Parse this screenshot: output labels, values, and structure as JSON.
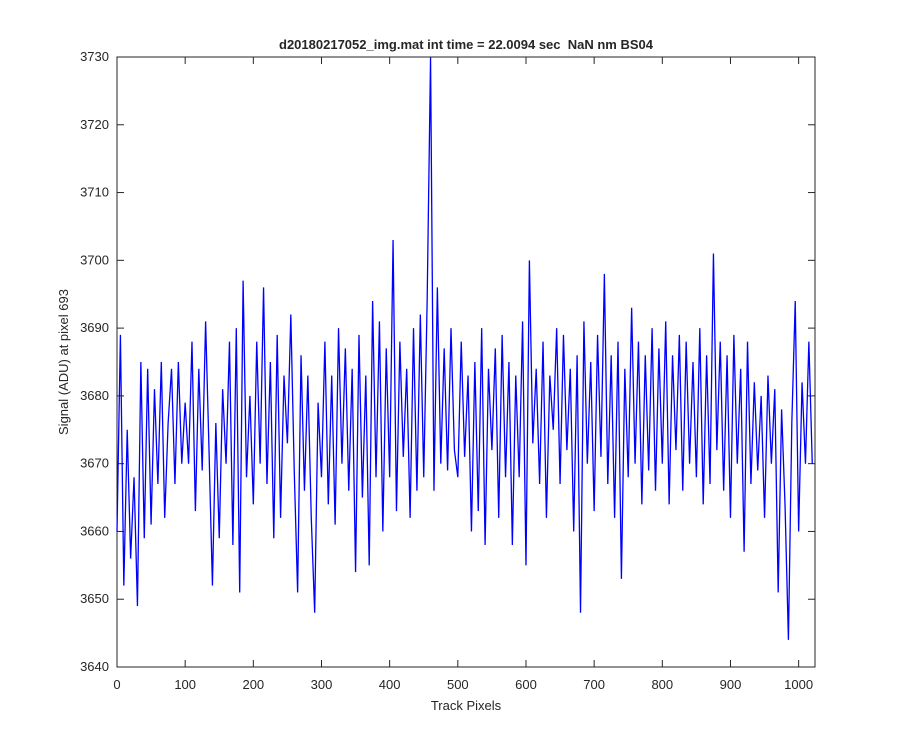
{
  "chart_data": {
    "type": "line",
    "title": "d20180217052_img.mat int time = 22.0094 sec  NaN nm BS04",
    "x_label": "Track Pixels",
    "y_label": "Signal (ADU) at pixel 693",
    "x": [
      0,
      5,
      10,
      15,
      20,
      25,
      30,
      35,
      40,
      45,
      50,
      55,
      60,
      65,
      70,
      75,
      80,
      85,
      90,
      95,
      100,
      105,
      110,
      115,
      120,
      125,
      130,
      135,
      140,
      145,
      150,
      155,
      160,
      165,
      170,
      175,
      180,
      185,
      190,
      195,
      200,
      205,
      210,
      215,
      220,
      225,
      230,
      235,
      240,
      245,
      250,
      255,
      260,
      265,
      270,
      275,
      280,
      285,
      290,
      295,
      300,
      305,
      310,
      315,
      320,
      325,
      330,
      335,
      340,
      345,
      350,
      355,
      360,
      365,
      370,
      375,
      380,
      385,
      390,
      395,
      400,
      405,
      410,
      415,
      420,
      425,
      430,
      435,
      440,
      445,
      450,
      455,
      460,
      465,
      470,
      475,
      480,
      485,
      490,
      495,
      500,
      505,
      510,
      515,
      520,
      525,
      530,
      535,
      540,
      545,
      550,
      555,
      560,
      565,
      570,
      575,
      580,
      585,
      590,
      595,
      600,
      605,
      610,
      615,
      620,
      625,
      630,
      635,
      640,
      645,
      650,
      655,
      660,
      665,
      670,
      675,
      680,
      685,
      690,
      695,
      700,
      705,
      710,
      715,
      720,
      725,
      730,
      735,
      740,
      745,
      750,
      755,
      760,
      765,
      770,
      775,
      780,
      785,
      790,
      795,
      800,
      805,
      810,
      815,
      820,
      825,
      830,
      835,
      840,
      845,
      850,
      855,
      860,
      865,
      870,
      875,
      880,
      885,
      890,
      895,
      900,
      905,
      910,
      915,
      920,
      925,
      930,
      935,
      940,
      945,
      950,
      955,
      960,
      965,
      970,
      975,
      980,
      985,
      990,
      995,
      1000,
      1005,
      1010,
      1015,
      1020
    ],
    "series": [
      {
        "name": "signal",
        "color": "#0000ff",
        "values": [
          3660,
          3689,
          3652,
          3675,
          3656,
          3668,
          3649,
          3685,
          3659,
          3684,
          3661,
          3681,
          3667,
          3685,
          3662,
          3676,
          3684,
          3667,
          3685,
          3670,
          3679,
          3670,
          3688,
          3663,
          3684,
          3669,
          3691,
          3672,
          3652,
          3676,
          3659,
          3681,
          3670,
          3688,
          3658,
          3690,
          3651,
          3697,
          3668,
          3680,
          3664,
          3688,
          3670,
          3696,
          3667,
          3685,
          3659,
          3689,
          3662,
          3683,
          3673,
          3692,
          3669,
          3651,
          3686,
          3666,
          3683,
          3662,
          3648,
          3679,
          3668,
          3688,
          3664,
          3683,
          3661,
          3690,
          3670,
          3687,
          3666,
          3684,
          3654,
          3689,
          3665,
          3683,
          3655,
          3694,
          3668,
          3691,
          3660,
          3687,
          3668,
          3703,
          3663,
          3688,
          3671,
          3684,
          3662,
          3690,
          3666,
          3692,
          3668,
          3694,
          3730,
          3666,
          3696,
          3670,
          3687,
          3669,
          3690,
          3672,
          3668,
          3688,
          3671,
          3683,
          3660,
          3685,
          3663,
          3690,
          3658,
          3684,
          3672,
          3687,
          3662,
          3689,
          3668,
          3685,
          3658,
          3683,
          3668,
          3691,
          3655,
          3700,
          3673,
          3684,
          3667,
          3688,
          3662,
          3683,
          3675,
          3690,
          3667,
          3689,
          3672,
          3684,
          3660,
          3686,
          3648,
          3691,
          3670,
          3685,
          3663,
          3689,
          3671,
          3698,
          3667,
          3686,
          3662,
          3688,
          3653,
          3684,
          3668,
          3693,
          3670,
          3688,
          3664,
          3686,
          3669,
          3690,
          3666,
          3687,
          3670,
          3691,
          3664,
          3686,
          3672,
          3689,
          3666,
          3688,
          3670,
          3685,
          3668,
          3690,
          3664,
          3686,
          3667,
          3701,
          3672,
          3688,
          3666,
          3686,
          3662,
          3689,
          3670,
          3684,
          3657,
          3688,
          3667,
          3682,
          3669,
          3680,
          3662,
          3683,
          3670,
          3681,
          3651,
          3678,
          3664,
          3644,
          3676,
          3694,
          3660,
          3682,
          3670,
          3688,
          3670
        ]
      }
    ],
    "xlim": [
      0,
      1024
    ],
    "ylim": [
      3640,
      3730
    ],
    "xticks": [
      0,
      100,
      200,
      300,
      400,
      500,
      600,
      700,
      800,
      900,
      1000
    ],
    "yticks": [
      3640,
      3650,
      3660,
      3670,
      3680,
      3690,
      3700,
      3710,
      3720,
      3730
    ],
    "grid": false
  }
}
